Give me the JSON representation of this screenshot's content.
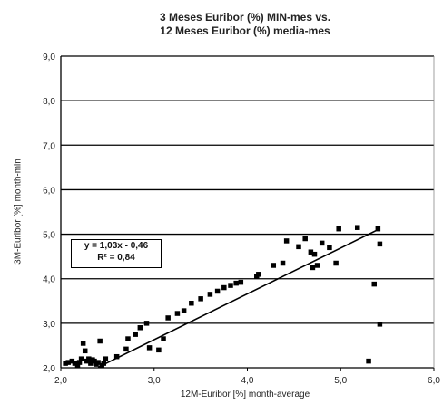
{
  "chart_data": {
    "type": "scatter",
    "title": [
      "3 Meses Euribor (%) MIN-mes  vs.",
      "12 Meses Euribor (%) media-mes"
    ],
    "xlabel": "12M-Euribor [%]  month-average",
    "ylabel": "3M-Euribor [%]  month-min",
    "xlim": [
      2.0,
      6.0
    ],
    "ylim": [
      2.0,
      9.0
    ],
    "xticks": [
      "2,0",
      "3,0",
      "4,0",
      "5,0",
      "6,0"
    ],
    "yticks": [
      "2,0",
      "3,0",
      "4,0",
      "5,0",
      "6,0",
      "7,0",
      "8,0",
      "9,0"
    ],
    "grid": "horizontal",
    "equation": "y = 1,03x - 0,46",
    "r_squared": "R² = 0,84",
    "trendline": {
      "slope": 1.03,
      "intercept": -0.46,
      "x_range": [
        2.4,
        5.4
      ]
    },
    "points": [
      {
        "x": 2.05,
        "y": 2.1
      },
      {
        "x": 2.08,
        "y": 2.12
      },
      {
        "x": 2.12,
        "y": 2.15
      },
      {
        "x": 2.15,
        "y": 2.1
      },
      {
        "x": 2.18,
        "y": 2.05
      },
      {
        "x": 2.2,
        "y": 2.12
      },
      {
        "x": 2.22,
        "y": 2.2
      },
      {
        "x": 2.24,
        "y": 2.55
      },
      {
        "x": 2.26,
        "y": 2.38
      },
      {
        "x": 2.28,
        "y": 2.15
      },
      {
        "x": 2.3,
        "y": 2.2
      },
      {
        "x": 2.32,
        "y": 2.1
      },
      {
        "x": 2.34,
        "y": 2.18
      },
      {
        "x": 2.36,
        "y": 2.15
      },
      {
        "x": 2.38,
        "y": 2.08
      },
      {
        "x": 2.4,
        "y": 2.12
      },
      {
        "x": 2.42,
        "y": 2.6
      },
      {
        "x": 2.44,
        "y": 2.05
      },
      {
        "x": 2.46,
        "y": 2.1
      },
      {
        "x": 2.48,
        "y": 2.2
      },
      {
        "x": 2.6,
        "y": 2.25
      },
      {
        "x": 2.7,
        "y": 2.42
      },
      {
        "x": 2.72,
        "y": 2.65
      },
      {
        "x": 2.8,
        "y": 2.75
      },
      {
        "x": 2.85,
        "y": 2.9
      },
      {
        "x": 2.92,
        "y": 3.0
      },
      {
        "x": 2.95,
        "y": 2.45
      },
      {
        "x": 3.05,
        "y": 2.4
      },
      {
        "x": 3.1,
        "y": 2.65
      },
      {
        "x": 3.15,
        "y": 3.12
      },
      {
        "x": 3.25,
        "y": 3.22
      },
      {
        "x": 3.32,
        "y": 3.28
      },
      {
        "x": 3.4,
        "y": 3.45
      },
      {
        "x": 3.5,
        "y": 3.55
      },
      {
        "x": 3.6,
        "y": 3.65
      },
      {
        "x": 3.68,
        "y": 3.72
      },
      {
        "x": 3.75,
        "y": 3.8
      },
      {
        "x": 3.82,
        "y": 3.85
      },
      {
        "x": 3.88,
        "y": 3.9
      },
      {
        "x": 3.93,
        "y": 3.92
      },
      {
        "x": 4.1,
        "y": 4.05
      },
      {
        "x": 4.12,
        "y": 4.1
      },
      {
        "x": 4.28,
        "y": 4.3
      },
      {
        "x": 4.38,
        "y": 4.35
      },
      {
        "x": 4.42,
        "y": 4.85
      },
      {
        "x": 4.55,
        "y": 4.72
      },
      {
        "x": 4.62,
        "y": 4.9
      },
      {
        "x": 4.68,
        "y": 4.6
      },
      {
        "x": 4.72,
        "y": 4.55
      },
      {
        "x": 4.75,
        "y": 4.3
      },
      {
        "x": 4.8,
        "y": 4.8
      },
      {
        "x": 4.88,
        "y": 4.7
      },
      {
        "x": 4.95,
        "y": 4.35
      },
      {
        "x": 4.98,
        "y": 5.12
      },
      {
        "x": 5.18,
        "y": 5.15
      },
      {
        "x": 5.36,
        "y": 3.88
      },
      {
        "x": 5.4,
        "y": 5.12
      },
      {
        "x": 5.42,
        "y": 4.78
      },
      {
        "x": 5.42,
        "y": 2.98
      },
      {
        "x": 5.3,
        "y": 2.15
      },
      {
        "x": 4.7,
        "y": 4.25
      }
    ]
  }
}
